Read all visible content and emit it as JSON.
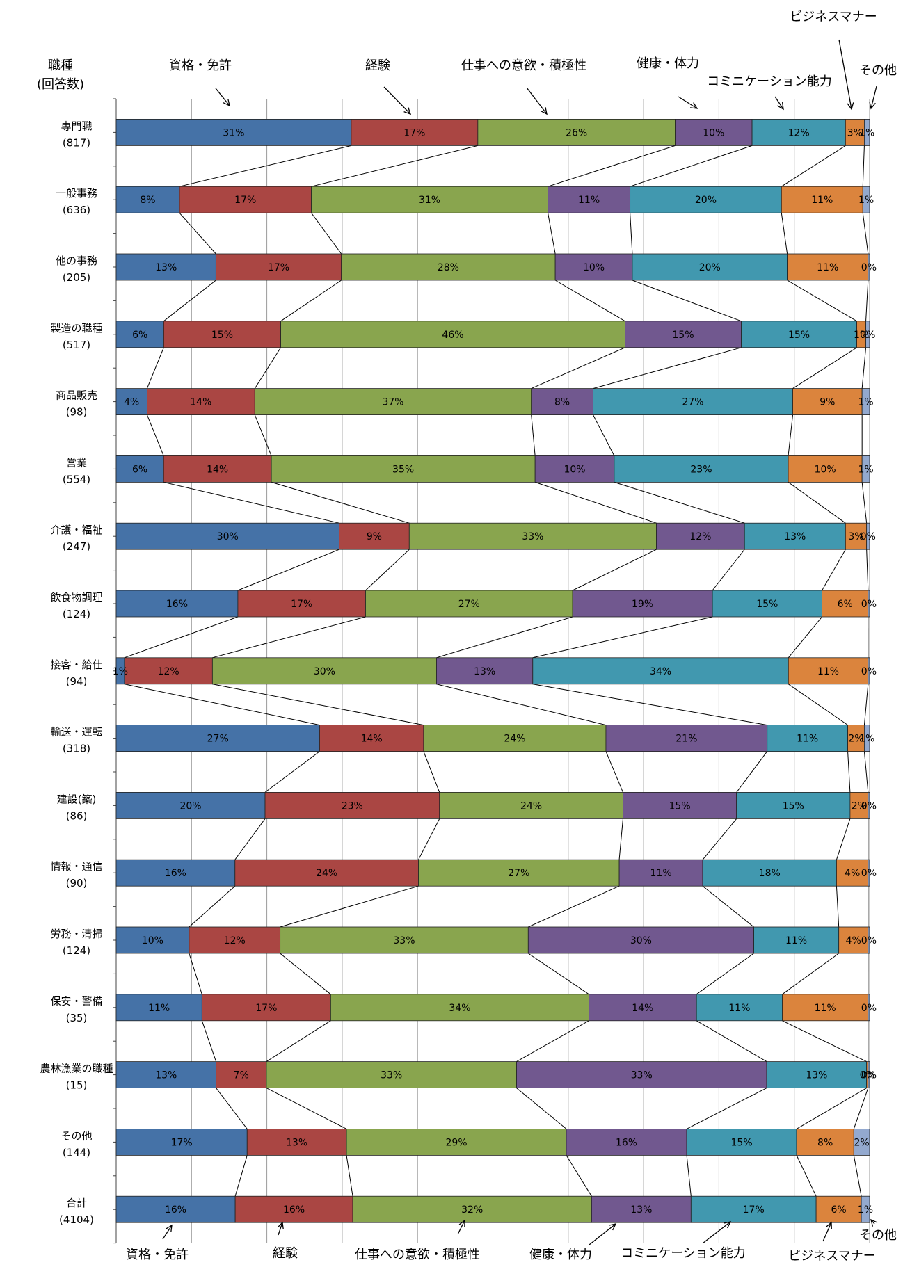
{
  "chart_data": {
    "type": "bar",
    "stacked": "percent-100",
    "orientation": "horizontal",
    "y_header": [
      "職種",
      "(回答数)"
    ],
    "categories": [
      "専門職",
      "一般事務",
      "他の事務",
      "製造の職種",
      "商品販売",
      "営業",
      "介護・福祉",
      "飲食物調理",
      "接客・給仕",
      "輸送・運転",
      "建設(築)",
      "情報・通信",
      "労務・清掃",
      "保安・警備",
      "農林漁業の職種",
      "その他",
      "合計"
    ],
    "counts": [
      "(817)",
      "(636)",
      "(205)",
      "(517)",
      "(98)",
      "(554)",
      "(247)",
      "(124)",
      "(94)",
      "(318)",
      "(86)",
      "(90)",
      "(124)",
      "(35)",
      "(15)",
      "(144)",
      "(4104)"
    ],
    "series": [
      {
        "name": "資格・免許",
        "color": "#4572A7",
        "values": [
          31.2,
          8.4,
          13.2,
          6.3,
          4.1,
          6.3,
          29.6,
          16.1,
          1.1,
          27.0,
          19.8,
          15.8,
          9.7,
          11.4,
          13.3,
          17.4,
          15.8
        ],
        "labels": [
          "31%",
          "8%",
          "13%",
          "6%",
          "4%",
          "6%",
          "30%",
          "16%",
          "1%",
          "27%",
          "20%",
          "16%",
          "10%",
          "11%",
          "13%",
          "17%",
          "16%"
        ]
      },
      {
        "name": "経験",
        "color": "#AA4643",
        "values": [
          16.8,
          17.5,
          16.6,
          15.5,
          14.3,
          14.3,
          9.3,
          16.9,
          11.7,
          13.8,
          23.2,
          24.4,
          12.1,
          17.1,
          6.7,
          13.2,
          15.6
        ],
        "labels": [
          "17%",
          "17%",
          "17%",
          "15%",
          "14%",
          "14%",
          "9%",
          "17%",
          "12%",
          "14%",
          "23%",
          "24%",
          "12%",
          "17%",
          "7%",
          "13%",
          "16%"
        ]
      },
      {
        "name": "仕事への意欲・積極性",
        "color": "#89A54E",
        "values": [
          26.2,
          31.4,
          28.3,
          45.6,
          36.7,
          35.0,
          32.8,
          27.4,
          29.8,
          24.2,
          24.4,
          26.7,
          33.0,
          34.3,
          33.3,
          29.2,
          31.7
        ],
        "labels": [
          "26%",
          "31%",
          "28%",
          "46%",
          "37%",
          "35%",
          "33%",
          "27%",
          "30%",
          "24%",
          "24%",
          "27%",
          "33%",
          "34%",
          "33%",
          "29%",
          "32%"
        ]
      },
      {
        "name": "健康・体力",
        "color": "#71588F",
        "values": [
          10.2,
          10.9,
          10.2,
          15.4,
          8.2,
          10.5,
          11.7,
          18.5,
          12.8,
          21.4,
          15.1,
          11.1,
          30.0,
          14.3,
          33.3,
          16.0,
          13.2
        ],
        "labels": [
          "10%",
          "11%",
          "10%",
          "15%",
          "8%",
          "10%",
          "12%",
          "19%",
          "13%",
          "21%",
          "15%",
          "11%",
          "30%",
          "14%",
          "33%",
          "16%",
          "13%"
        ]
      },
      {
        "name": "コミニケーション能力",
        "color": "#4198AF",
        "values": [
          12.4,
          20.1,
          20.5,
          15.3,
          26.5,
          23.1,
          13.4,
          14.5,
          34.0,
          10.7,
          15.1,
          17.8,
          11.3,
          11.4,
          13.3,
          14.6,
          16.6
        ],
        "labels": [
          "12%",
          "20%",
          "20%",
          "15%",
          "27%",
          "23%",
          "13%",
          "15%",
          "34%",
          "11%",
          "15%",
          "18%",
          "11%",
          "11%",
          "13%",
          "15%",
          "17%"
        ]
      },
      {
        "name": "ビジネスマナー",
        "color": "#DB843D",
        "values": [
          2.5,
          10.8,
          10.7,
          1.2,
          9.2,
          9.8,
          2.8,
          6.1,
          10.6,
          2.2,
          2.4,
          4.2,
          3.9,
          11.4,
          0.2,
          7.6,
          6.0
        ],
        "labels": [
          "3%",
          "11%",
          "11%",
          "1%",
          "9%",
          "10%",
          "3%",
          "6%",
          "11%",
          "2%",
          "2%",
          "4%",
          "4%",
          "11%",
          "0%",
          "8%",
          "6%"
        ]
      },
      {
        "name": "その他",
        "color": "#93A9CF",
        "values": [
          0.7,
          0.9,
          0.2,
          0.5,
          1.0,
          1.0,
          0.4,
          0.2,
          0.2,
          0.7,
          0.2,
          0.2,
          0.2,
          0.2,
          0.2,
          2.1,
          1.1
        ],
        "labels": [
          "1%",
          "1%",
          "0%",
          "0%",
          "1%",
          "1%",
          "0%",
          "0%",
          "0%",
          "1%",
          "0%",
          "0%",
          "0%",
          "0%",
          "0%",
          "2%",
          "1%"
        ]
      }
    ],
    "xlim": [
      0,
      100
    ],
    "grid": true,
    "series_lines": true,
    "callout_labels_top": [
      "資格・免許",
      "経験",
      "仕事への意欲・積極性",
      "健康・体力",
      "コミニケーション能力",
      "ビジネスマナー",
      "その他"
    ],
    "callout_labels_bottom": [
      "資格・免許",
      "経験",
      "仕事への意欲・積極性",
      "健康・体力",
      "コミニケーション能力",
      "ビジネスマナー",
      "その他"
    ]
  }
}
